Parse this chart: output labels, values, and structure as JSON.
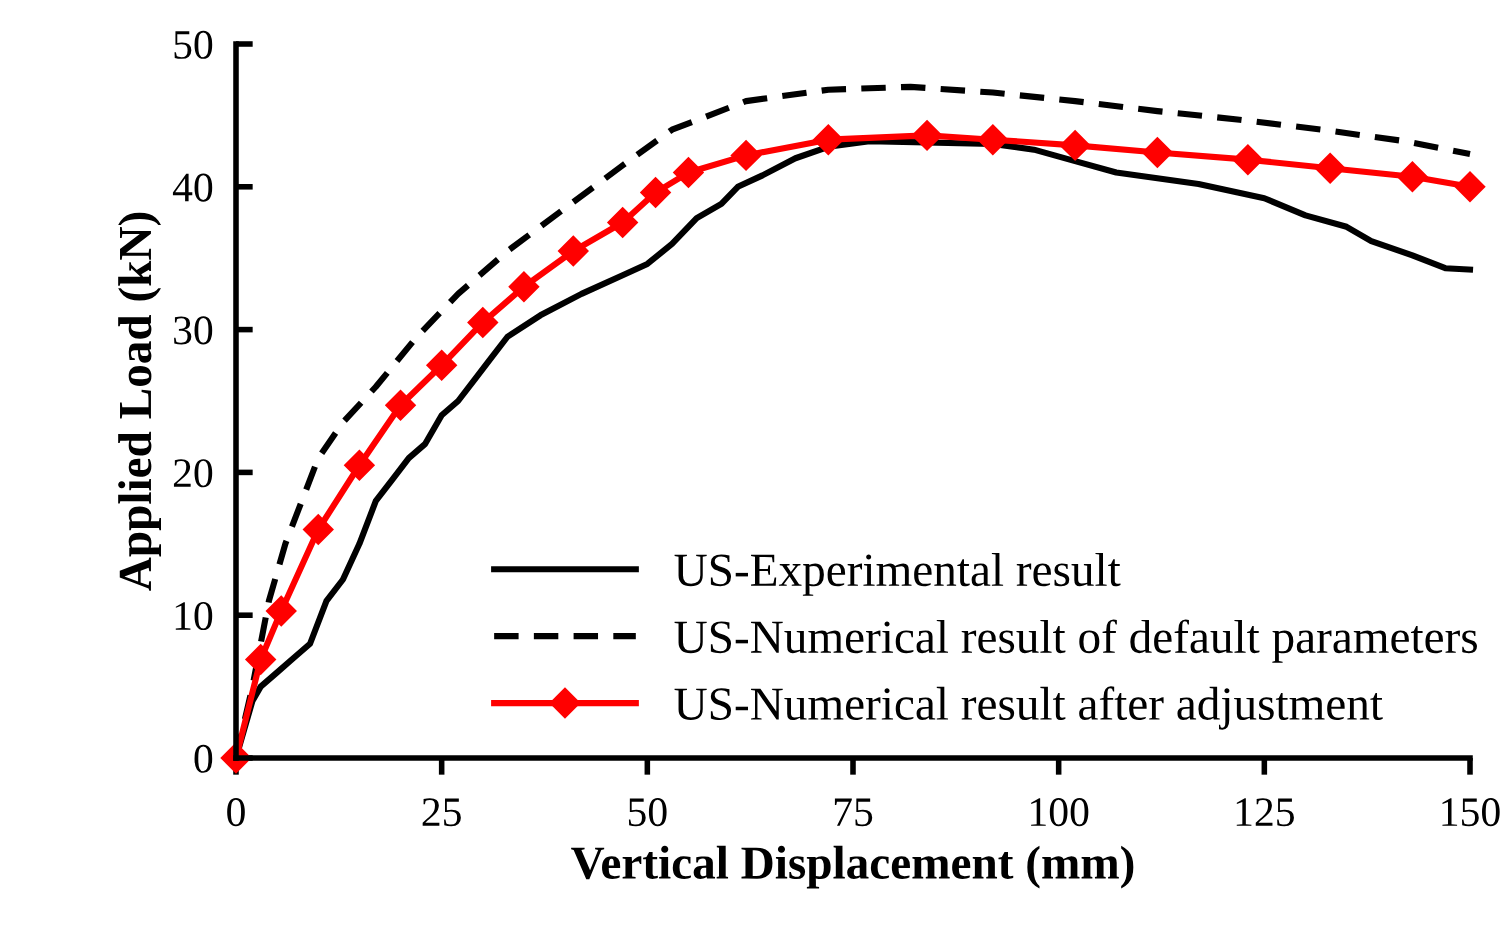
{
  "chart_data": {
    "type": "line",
    "xlabel": "Vertical Displacement (mm)",
    "ylabel": "Applied Load (kN)",
    "xlim": [
      0,
      150
    ],
    "ylim": [
      0,
      50
    ],
    "xticks": [
      0,
      25,
      50,
      75,
      100,
      125,
      150
    ],
    "yticks": [
      0,
      10,
      20,
      30,
      40,
      50
    ],
    "grid": false,
    "legend": "bottom right",
    "series": [
      {
        "name": "US-Experimental result",
        "color": "#000000",
        "line_style": "solid",
        "marker": "none",
        "x": [
          0,
          1,
          2,
          3,
          5,
          7,
          9,
          11,
          13,
          15,
          17,
          19,
          21,
          23,
          25,
          27,
          29,
          31,
          33,
          37,
          42,
          47,
          50,
          53,
          56,
          59,
          61,
          64,
          68,
          72,
          77,
          92,
          97,
          102,
          107,
          117,
          125,
          130,
          135,
          138,
          143,
          147,
          150
        ],
        "values": [
          0,
          2,
          4,
          5,
          6,
          7,
          8,
          11,
          12.5,
          15,
          18,
          19.5,
          21,
          22,
          24,
          25,
          26.5,
          28,
          29.5,
          31,
          32.5,
          33.8,
          34.6,
          36,
          37.8,
          38.8,
          40,
          40.8,
          42,
          42.8,
          43.2,
          43,
          42.6,
          41.8,
          41,
          40.2,
          39.2,
          38,
          37.2,
          36.2,
          35.2,
          34.3,
          34.2
        ]
      },
      {
        "name": "US-Numerical result of default parameters",
        "color": "#000000",
        "line_style": "dashed",
        "marker": "none",
        "x": [
          0,
          2,
          4,
          6,
          8,
          10,
          13,
          17,
          22,
          27,
          33,
          40,
          47,
          53,
          62,
          72,
          82,
          92,
          102,
          112,
          122,
          132,
          142,
          150
        ],
        "values": [
          0,
          5,
          11,
          15,
          18,
          21,
          23.5,
          26,
          29.5,
          32.5,
          35.5,
          38.5,
          41.5,
          44,
          46,
          46.8,
          47,
          46.6,
          46,
          45.3,
          44.7,
          44,
          43.2,
          42.3
        ]
      },
      {
        "name": "US-Numerical result after adjustment",
        "color": "#ff0000",
        "line_style": "solid",
        "marker": "diamond",
        "x": [
          0,
          3,
          5.5,
          10,
          15,
          20,
          25,
          30,
          35,
          41,
          47,
          51,
          55,
          62,
          72,
          84,
          92,
          102,
          112,
          123,
          133,
          143,
          150
        ],
        "values": [
          0,
          6.9,
          10.3,
          16,
          20.5,
          24.7,
          27.5,
          30.5,
          33,
          35.5,
          37.5,
          39.6,
          41,
          42.2,
          43.3,
          43.6,
          43.3,
          42.9,
          42.4,
          41.9,
          41.3,
          40.7,
          40
        ]
      }
    ]
  }
}
